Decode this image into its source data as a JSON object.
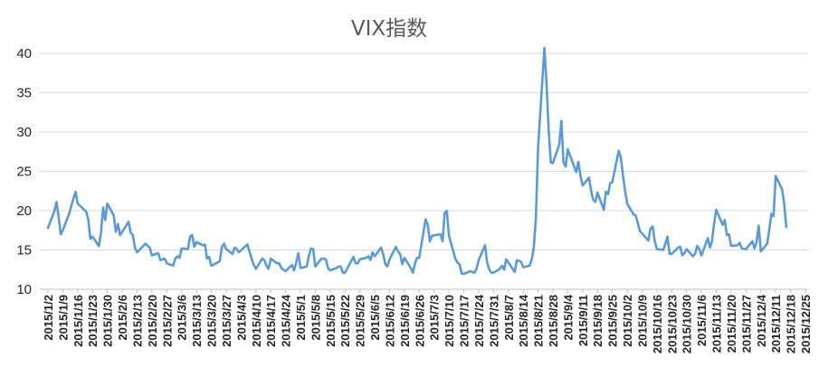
{
  "chart_data": {
    "type": "line",
    "title": "VIX指数",
    "xlabel": "",
    "ylabel": "",
    "ylim": [
      10,
      40
    ],
    "yticks": [
      10,
      15,
      20,
      25,
      30,
      35,
      40
    ],
    "grid": true,
    "legend": "none",
    "line_color": "#5b9bd5",
    "x_tick_labels": [
      "2015/1/2",
      "2015/1/9",
      "2015/1/16",
      "2015/1/23",
      "2015/1/30",
      "2015/2/6",
      "2015/2/13",
      "2015/2/20",
      "2015/2/27",
      "2015/3/6",
      "2015/3/13",
      "2015/3/20",
      "2015/3/27",
      "2015/4/3",
      "2015/4/10",
      "2015/4/17",
      "2015/4/24",
      "2015/5/1",
      "2015/5/8",
      "2015/5/15",
      "2015/5/22",
      "2015/5/29",
      "2015/6/5",
      "2015/6/12",
      "2015/6/19",
      "2015/6/26",
      "2015/7/3",
      "2015/7/10",
      "2015/7/17",
      "2015/7/24",
      "2015/7/31",
      "2015/8/7",
      "2015/8/14",
      "2015/8/21",
      "2015/8/28",
      "2015/9/4",
      "2015/9/11",
      "2015/9/18",
      "2015/9/25",
      "2015/10/2",
      "2015/10/9",
      "2015/10/16",
      "2015/10/23",
      "2015/10/30",
      "2015/11/6",
      "2015/11/13",
      "2015/11/20",
      "2015/11/27",
      "2015/12/4",
      "2015/12/11",
      "2015/12/18",
      "2015/12/25"
    ],
    "series": [
      {
        "points": [
          [
            "2015-01-02",
            17.8
          ],
          [
            "2015-01-05",
            19.9
          ],
          [
            "2015-01-06",
            21.1
          ],
          [
            "2015-01-07",
            19.3
          ],
          [
            "2015-01-08",
            17.0
          ],
          [
            "2015-01-09",
            17.5
          ],
          [
            "2015-01-12",
            19.6
          ],
          [
            "2015-01-13",
            20.6
          ],
          [
            "2015-01-14",
            21.5
          ],
          [
            "2015-01-15",
            22.4
          ],
          [
            "2015-01-16",
            20.9
          ],
          [
            "2015-01-20",
            19.9
          ],
          [
            "2015-01-21",
            18.9
          ],
          [
            "2015-01-22",
            16.4
          ],
          [
            "2015-01-23",
            16.7
          ],
          [
            "2015-01-26",
            15.5
          ],
          [
            "2015-01-27",
            17.2
          ],
          [
            "2015-01-28",
            20.4
          ],
          [
            "2015-01-29",
            18.8
          ],
          [
            "2015-01-30",
            20.9
          ],
          [
            "2015-02-02",
            19.4
          ],
          [
            "2015-02-03",
            17.3
          ],
          [
            "2015-02-04",
            18.3
          ],
          [
            "2015-02-05",
            16.9
          ],
          [
            "2015-02-06",
            17.3
          ],
          [
            "2015-02-09",
            18.6
          ],
          [
            "2015-02-10",
            17.2
          ],
          [
            "2015-02-11",
            16.9
          ],
          [
            "2015-02-12",
            15.3
          ],
          [
            "2015-02-13",
            14.7
          ],
          [
            "2015-02-17",
            15.8
          ],
          [
            "2015-02-18",
            15.5
          ],
          [
            "2015-02-19",
            15.3
          ],
          [
            "2015-02-20",
            14.3
          ],
          [
            "2015-02-23",
            14.6
          ],
          [
            "2015-02-24",
            13.7
          ],
          [
            "2015-02-25",
            13.8
          ],
          [
            "2015-02-26",
            13.9
          ],
          [
            "2015-02-27",
            13.3
          ],
          [
            "2015-03-02",
            13.0
          ],
          [
            "2015-03-03",
            13.9
          ],
          [
            "2015-03-04",
            14.2
          ],
          [
            "2015-03-05",
            14.0
          ],
          [
            "2015-03-06",
            15.2
          ],
          [
            "2015-03-09",
            15.1
          ],
          [
            "2015-03-10",
            16.7
          ],
          [
            "2015-03-11",
            16.9
          ],
          [
            "2015-03-12",
            15.4
          ],
          [
            "2015-03-13",
            16.0
          ],
          [
            "2015-03-16",
            15.6
          ],
          [
            "2015-03-17",
            15.7
          ],
          [
            "2015-03-18",
            13.9
          ],
          [
            "2015-03-19",
            14.1
          ],
          [
            "2015-03-20",
            13.0
          ],
          [
            "2015-03-23",
            13.4
          ],
          [
            "2015-03-24",
            13.6
          ],
          [
            "2015-03-25",
            15.4
          ],
          [
            "2015-03-26",
            15.8
          ],
          [
            "2015-03-27",
            15.1
          ],
          [
            "2015-03-30",
            14.5
          ],
          [
            "2015-03-31",
            15.3
          ],
          [
            "2015-04-01",
            15.1
          ],
          [
            "2015-04-02",
            14.7
          ],
          [
            "2015-04-06",
            15.7
          ],
          [
            "2015-04-07",
            14.8
          ],
          [
            "2015-04-08",
            13.9
          ],
          [
            "2015-04-09",
            13.1
          ],
          [
            "2015-04-10",
            12.6
          ],
          [
            "2015-04-13",
            13.9
          ],
          [
            "2015-04-14",
            13.7
          ],
          [
            "2015-04-15",
            13.0
          ],
          [
            "2015-04-16",
            12.6
          ],
          [
            "2015-04-17",
            13.9
          ],
          [
            "2015-04-20",
            13.3
          ],
          [
            "2015-04-21",
            13.3
          ],
          [
            "2015-04-22",
            12.7
          ],
          [
            "2015-04-23",
            12.5
          ],
          [
            "2015-04-24",
            12.3
          ],
          [
            "2015-04-27",
            13.1
          ],
          [
            "2015-04-28",
            12.4
          ],
          [
            "2015-04-29",
            13.4
          ],
          [
            "2015-04-30",
            14.6
          ],
          [
            "2015-05-01",
            12.7
          ],
          [
            "2015-05-04",
            12.9
          ],
          [
            "2015-05-05",
            14.3
          ],
          [
            "2015-05-06",
            15.2
          ],
          [
            "2015-05-07",
            15.1
          ],
          [
            "2015-05-08",
            12.9
          ],
          [
            "2015-05-11",
            13.9
          ],
          [
            "2015-05-12",
            13.9
          ],
          [
            "2015-05-13",
            13.8
          ],
          [
            "2015-05-14",
            12.7
          ],
          [
            "2015-05-15",
            12.4
          ],
          [
            "2015-05-18",
            12.7
          ],
          [
            "2015-05-19",
            12.9
          ],
          [
            "2015-05-20",
            12.9
          ],
          [
            "2015-05-21",
            12.1
          ],
          [
            "2015-05-22",
            12.1
          ],
          [
            "2015-05-26",
            14.1
          ],
          [
            "2015-05-27",
            13.3
          ],
          [
            "2015-05-28",
            13.3
          ],
          [
            "2015-05-29",
            13.8
          ],
          [
            "2015-06-01",
            14.0
          ],
          [
            "2015-06-02",
            14.2
          ],
          [
            "2015-06-03",
            13.7
          ],
          [
            "2015-06-04",
            14.7
          ],
          [
            "2015-06-05",
            14.2
          ],
          [
            "2015-06-08",
            15.3
          ],
          [
            "2015-06-09",
            14.5
          ],
          [
            "2015-06-10",
            13.2
          ],
          [
            "2015-06-11",
            12.9
          ],
          [
            "2015-06-12",
            13.8
          ],
          [
            "2015-06-15",
            15.4
          ],
          [
            "2015-06-16",
            14.8
          ],
          [
            "2015-06-17",
            14.5
          ],
          [
            "2015-06-18",
            13.2
          ],
          [
            "2015-06-19",
            14.0
          ],
          [
            "2015-06-22",
            12.7
          ],
          [
            "2015-06-23",
            12.1
          ],
          [
            "2015-06-24",
            13.3
          ],
          [
            "2015-06-25",
            14.0
          ],
          [
            "2015-06-26",
            14.0
          ],
          [
            "2015-06-29",
            18.9
          ],
          [
            "2015-06-30",
            18.2
          ],
          [
            "2015-07-01",
            16.1
          ],
          [
            "2015-07-02",
            16.8
          ],
          [
            "2015-07-06",
            17.0
          ],
          [
            "2015-07-07",
            16.1
          ],
          [
            "2015-07-08",
            19.7
          ],
          [
            "2015-07-09",
            19.97
          ],
          [
            "2015-07-10",
            16.8
          ],
          [
            "2015-07-13",
            13.9
          ],
          [
            "2015-07-14",
            13.4
          ],
          [
            "2015-07-15",
            13.2
          ],
          [
            "2015-07-16",
            12.0
          ],
          [
            "2015-07-17",
            11.95
          ],
          [
            "2015-07-20",
            12.3
          ],
          [
            "2015-07-21",
            12.2
          ],
          [
            "2015-07-22",
            12.1
          ],
          [
            "2015-07-23",
            12.6
          ],
          [
            "2015-07-24",
            13.7
          ],
          [
            "2015-07-27",
            15.6
          ],
          [
            "2015-07-28",
            13.4
          ],
          [
            "2015-07-29",
            12.5
          ],
          [
            "2015-07-30",
            12.1
          ],
          [
            "2015-07-31",
            12.1
          ],
          [
            "2015-08-03",
            12.6
          ],
          [
            "2015-08-04",
            13.0
          ],
          [
            "2015-08-05",
            12.5
          ],
          [
            "2015-08-06",
            13.8
          ],
          [
            "2015-08-07",
            13.4
          ],
          [
            "2015-08-10",
            12.2
          ],
          [
            "2015-08-11",
            13.7
          ],
          [
            "2015-08-12",
            13.6
          ],
          [
            "2015-08-13",
            13.5
          ],
          [
            "2015-08-14",
            12.8
          ],
          [
            "2015-08-17",
            13.0
          ],
          [
            "2015-08-18",
            13.8
          ],
          [
            "2015-08-19",
            15.3
          ],
          [
            "2015-08-20",
            19.1
          ],
          [
            "2015-08-21",
            28.0
          ],
          [
            "2015-08-24",
            40.7
          ],
          [
            "2015-08-25",
            36.0
          ],
          [
            "2015-08-26",
            30.3
          ],
          [
            "2015-08-27",
            26.1
          ],
          [
            "2015-08-28",
            26.05
          ],
          [
            "2015-08-31",
            28.4
          ],
          [
            "2015-09-01",
            31.4
          ],
          [
            "2015-09-02",
            26.1
          ],
          [
            "2015-09-03",
            25.6
          ],
          [
            "2015-09-04",
            27.8
          ],
          [
            "2015-09-08",
            24.9
          ],
          [
            "2015-09-09",
            26.2
          ],
          [
            "2015-09-10",
            24.4
          ],
          [
            "2015-09-11",
            23.2
          ],
          [
            "2015-09-14",
            24.2
          ],
          [
            "2015-09-15",
            22.5
          ],
          [
            "2015-09-16",
            21.4
          ],
          [
            "2015-09-17",
            21.1
          ],
          [
            "2015-09-18",
            22.3
          ],
          [
            "2015-09-21",
            20.1
          ],
          [
            "2015-09-22",
            22.4
          ],
          [
            "2015-09-23",
            22.1
          ],
          [
            "2015-09-24",
            23.5
          ],
          [
            "2015-09-25",
            23.6
          ],
          [
            "2015-09-28",
            27.6
          ],
          [
            "2015-09-29",
            26.8
          ],
          [
            "2015-09-30",
            24.5
          ],
          [
            "2015-10-01",
            22.6
          ],
          [
            "2015-10-02",
            20.9
          ],
          [
            "2015-10-05",
            19.5
          ],
          [
            "2015-10-06",
            19.4
          ],
          [
            "2015-10-07",
            18.4
          ],
          [
            "2015-10-08",
            17.4
          ],
          [
            "2015-10-09",
            17.1
          ],
          [
            "2015-10-12",
            16.2
          ],
          [
            "2015-10-13",
            17.7
          ],
          [
            "2015-10-14",
            18.0
          ],
          [
            "2015-10-15",
            16.1
          ],
          [
            "2015-10-16",
            15.1
          ],
          [
            "2015-10-19",
            15.0
          ],
          [
            "2015-10-20",
            15.8
          ],
          [
            "2015-10-21",
            16.7
          ],
          [
            "2015-10-22",
            14.5
          ],
          [
            "2015-10-23",
            14.5
          ],
          [
            "2015-10-26",
            15.3
          ],
          [
            "2015-10-27",
            15.4
          ],
          [
            "2015-10-28",
            14.3
          ],
          [
            "2015-10-29",
            14.6
          ],
          [
            "2015-10-30",
            15.1
          ],
          [
            "2015-11-02",
            14.2
          ],
          [
            "2015-11-03",
            14.5
          ],
          [
            "2015-11-04",
            15.5
          ],
          [
            "2015-11-05",
            15.1
          ],
          [
            "2015-11-06",
            14.3
          ],
          [
            "2015-11-09",
            16.5
          ],
          [
            "2015-11-10",
            15.3
          ],
          [
            "2015-11-11",
            16.1
          ],
          [
            "2015-11-12",
            18.4
          ],
          [
            "2015-11-13",
            20.1
          ],
          [
            "2015-11-16",
            18.2
          ],
          [
            "2015-11-17",
            18.8
          ],
          [
            "2015-11-18",
            16.9
          ],
          [
            "2015-11-19",
            16.99
          ],
          [
            "2015-11-20",
            15.5
          ],
          [
            "2015-11-23",
            15.6
          ],
          [
            "2015-11-24",
            15.9
          ],
          [
            "2015-11-25",
            15.2
          ],
          [
            "2015-11-27",
            15.1
          ],
          [
            "2015-11-30",
            16.1
          ],
          [
            "2015-12-01",
            15.2
          ],
          [
            "2015-12-02",
            16.0
          ],
          [
            "2015-12-03",
            18.1
          ],
          [
            "2015-12-04",
            14.8
          ],
          [
            "2015-12-07",
            15.8
          ],
          [
            "2015-12-08",
            17.6
          ],
          [
            "2015-12-09",
            19.6
          ],
          [
            "2015-12-10",
            19.3
          ],
          [
            "2015-12-11",
            24.4
          ],
          [
            "2015-12-14",
            22.7
          ],
          [
            "2015-12-15",
            20.9
          ],
          [
            "2015-12-16",
            17.9
          ]
        ]
      }
    ]
  }
}
